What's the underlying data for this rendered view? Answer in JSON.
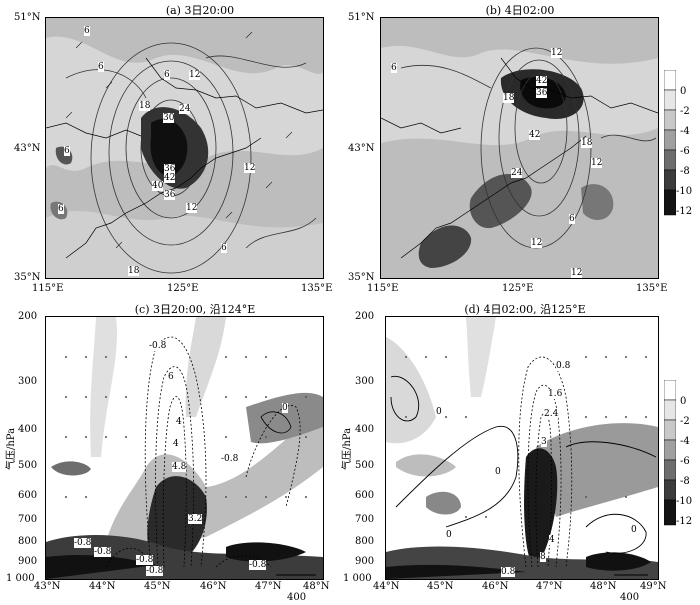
{
  "figure": {
    "colors": {
      "shade_light": "#d9d9d9",
      "shade_mid": "#a6a6a6",
      "shade_dark": "#666666",
      "shade_black": "#1a1a1a",
      "line": "#333333"
    }
  },
  "chart_data": [
    {
      "type": "heatmap",
      "panel": "a",
      "title": "(a) 3日20:00",
      "x_ticks": [
        "115°E",
        "125°E",
        "135°E"
      ],
      "y_ticks": [
        "51°N",
        "43°N",
        "35°N"
      ],
      "xlim": [
        115,
        135
      ],
      "ylim": [
        35,
        51
      ],
      "contour_labels": [
        "6",
        "6",
        "6",
        "6",
        "12",
        "18",
        "24",
        "30",
        "36",
        "42",
        "40",
        "36",
        "24",
        "12",
        "12",
        "6",
        "6",
        "18",
        "12"
      ]
    },
    {
      "type": "heatmap",
      "panel": "b",
      "title": "(b) 4日02:00",
      "x_ticks": [
        "115°E",
        "125°E",
        "135°E"
      ],
      "y_ticks": [
        "51°N",
        "43°N",
        "35°N"
      ],
      "xlim": [
        115,
        135
      ],
      "ylim": [
        35,
        51
      ],
      "contour_labels": [
        "12",
        "42",
        "36",
        "18",
        "42",
        "24",
        "18",
        "12",
        "6",
        "6",
        "12",
        "12"
      ]
    },
    {
      "type": "heatmap",
      "panel": "c",
      "title": "(c) 3日20:00, 沿124°E",
      "ylabel": "气压/hPa",
      "x_ticks": [
        "43°N",
        "44°N",
        "45°N",
        "46°N",
        "47°N",
        "48°N"
      ],
      "y_ticks": [
        "200",
        "300",
        "400",
        "500",
        "600",
        "700",
        "800",
        "900",
        "1 000"
      ],
      "xlim": [
        43,
        48
      ],
      "ylim": [
        1000,
        200
      ],
      "contour_labels": [
        "-0.8",
        "6",
        "4",
        "4",
        "4.8",
        "-0.8",
        "3.2",
        "-0.8",
        "-0.8",
        "-0.8",
        "-0.8",
        "-0.8",
        "0"
      ],
      "reference_vector": "400"
    },
    {
      "type": "heatmap",
      "panel": "d",
      "title": "(d) 4日02:00, 沿125°E",
      "ylabel": "气压/hPa",
      "x_ticks": [
        "44°N",
        "45°N",
        "46°N",
        "47°N",
        "48°N",
        "49°N"
      ],
      "y_ticks": [
        "200",
        "300",
        "400",
        "500",
        "600",
        "700",
        "800",
        "900",
        "1 000"
      ],
      "xlim": [
        44,
        49
      ],
      "ylim": [
        1000,
        200
      ],
      "contour_labels": [
        "0.8",
        "1.6",
        "2.4",
        "3",
        "0",
        "0",
        "4",
        "8",
        "0.8",
        "0",
        "0"
      ],
      "reference_vector": "400"
    }
  ],
  "colorbar": {
    "levels": [
      "0",
      "-2",
      "-4",
      "-6",
      "-8",
      "-10",
      "-12"
    ],
    "colors": [
      "#ffffff",
      "#e6e6e6",
      "#c8c8c8",
      "#a0a0a0",
      "#6e6e6e",
      "#3c3c3c",
      "#141414"
    ]
  }
}
